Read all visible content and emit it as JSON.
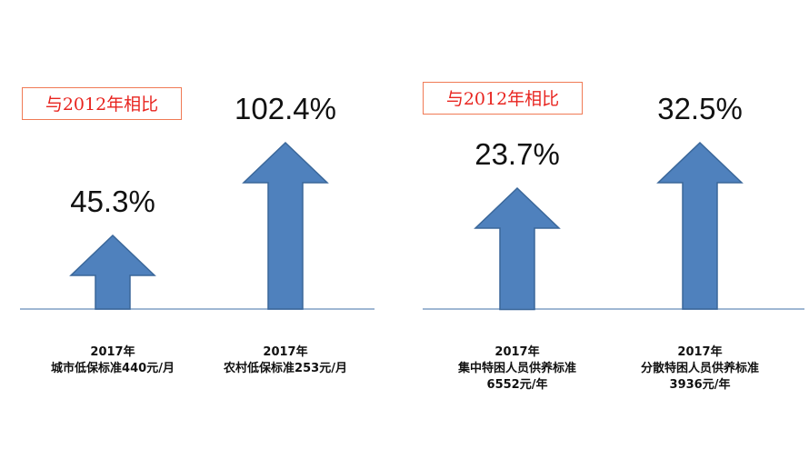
{
  "chart_data": [
    {
      "type": "bar",
      "compare_label": "与2012年相比",
      "categories": [
        "城市低保标准440元/月",
        "农村低保标准253元/月"
      ],
      "values": [
        45.3,
        102.4
      ],
      "value_labels": [
        "45.3%",
        "102.4%"
      ],
      "caption_lines": [
        [
          "2017年",
          "城市低保标准440元/月"
        ],
        [
          "2017年",
          "农村低保标准253元/月"
        ]
      ],
      "bar_color": "#4f81bd",
      "baseline_color": "#9fb7d3"
    },
    {
      "type": "bar",
      "compare_label": "与2012年相比",
      "categories": [
        "集中特困人员供养标准6552元/年",
        "分散特困人员供养标准3936元/年"
      ],
      "values": [
        23.7,
        32.5
      ],
      "value_labels": [
        "23.7%",
        "32.5%"
      ],
      "caption_lines": [
        [
          "2017年",
          "集中特困人员供养标准",
          "6552元/年"
        ],
        [
          "2017年",
          "分散特困人员供养标准",
          "3936元/年"
        ]
      ],
      "bar_color": "#4f81bd",
      "baseline_color": "#9fb7d3"
    }
  ]
}
